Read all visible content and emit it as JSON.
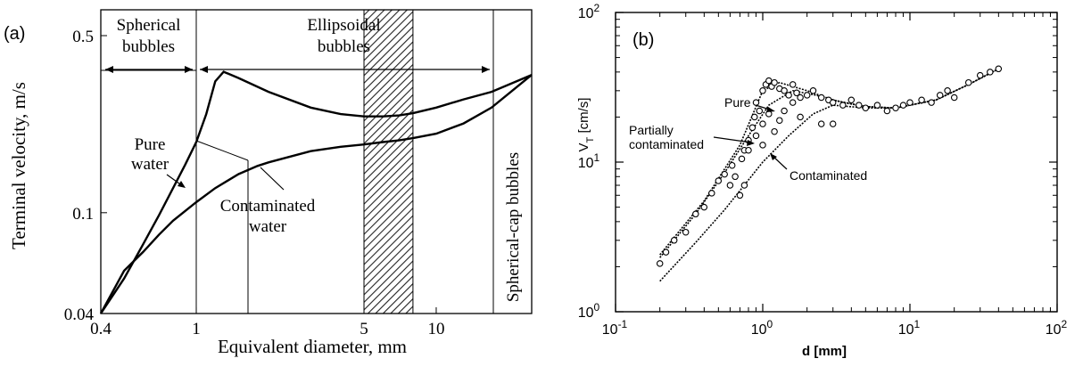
{
  "chart_data": [
    {
      "panel_label": "(a)",
      "type": "line",
      "xlabel": "Equivalent diameter, mm",
      "ylabel": "Terminal velocity, m/s",
      "xscale": "log",
      "yscale": "log",
      "xlim": [
        0.4,
        25
      ],
      "ylim": [
        0.04,
        0.6
      ],
      "x_ticks": [
        {
          "value": 0.4,
          "label": "0.4"
        },
        {
          "value": 1,
          "label": "1"
        },
        {
          "value": 5,
          "label": "5"
        },
        {
          "value": 10,
          "label": "10"
        }
      ],
      "y_ticks": [
        {
          "value": 0.04,
          "label": "0.04"
        },
        {
          "value": 0.1,
          "label": "0.1"
        },
        {
          "value": 0.5,
          "label": "0.5"
        }
      ],
      "regions": [
        {
          "label": "Spherical bubbles",
          "x_range": [
            0.4,
            1
          ]
        },
        {
          "label": "Ellipsoidal bubbles",
          "x_range": [
            1,
            17
          ]
        },
        {
          "label": "Spherical-cap bubbles",
          "x_range": [
            17,
            25
          ]
        }
      ],
      "hatched_band": [
        5,
        8
      ],
      "series": [
        {
          "x": [
            0.4,
            0.5,
            0.6,
            0.7,
            0.8,
            0.9,
            1.0,
            1.1,
            1.2,
            1.3,
            1.5,
            2,
            3,
            4,
            5,
            6,
            7,
            8,
            10,
            13,
            17,
            25
          ],
          "y": [
            0.04,
            0.055,
            0.075,
            0.098,
            0.125,
            0.155,
            0.19,
            0.245,
            0.33,
            0.36,
            0.34,
            0.3,
            0.26,
            0.245,
            0.24,
            0.24,
            0.242,
            0.247,
            0.26,
            0.28,
            0.3,
            0.35
          ]
        },
        {
          "x": [
            0.4,
            0.5,
            0.6,
            0.7,
            0.8,
            1.0,
            1.2,
            1.5,
            1.8,
            2,
            3,
            4,
            5,
            6,
            7,
            8,
            10,
            13,
            17,
            25
          ],
          "y": [
            0.04,
            0.059,
            0.07,
            0.082,
            0.093,
            0.11,
            0.125,
            0.142,
            0.153,
            0.158,
            0.175,
            0.182,
            0.186,
            0.19,
            0.193,
            0.197,
            0.205,
            0.225,
            0.26,
            0.35
          ]
        }
      ],
      "annotations": [
        "Pure water",
        "Contaminated water"
      ]
    },
    {
      "panel_label": "(b)",
      "type": "scatter",
      "xlabel": "d [mm]",
      "ylabel": "VT [cm/s]",
      "xscale": "log",
      "yscale": "log",
      "xlim": [
        0.1,
        100
      ],
      "ylim": [
        1,
        100
      ],
      "x_ticks": [
        {
          "value": 0.1,
          "base": "10",
          "exp": "-1"
        },
        {
          "value": 1,
          "base": "10",
          "exp": "0"
        },
        {
          "value": 10,
          "base": "10",
          "exp": "1"
        },
        {
          "value": 100,
          "base": "10",
          "exp": "2"
        }
      ],
      "y_ticks": [
        {
          "value": 1,
          "base": "10",
          "exp": "0"
        },
        {
          "value": 10,
          "base": "10",
          "exp": "1"
        },
        {
          "value": 100,
          "base": "10",
          "exp": "2"
        }
      ],
      "lines": [
        {
          "x": [
            0.2,
            0.4,
            0.7,
            1.0,
            1.3,
            2,
            3,
            5,
            8,
            15,
            25,
            40
          ],
          "y": [
            2.4,
            5.5,
            13,
            30,
            34,
            30,
            26,
            23.5,
            23,
            26,
            33,
            42
          ]
        },
        {
          "x": [
            0.2,
            0.35,
            0.55,
            0.8,
            1.1,
            1.6,
            2.3,
            3.5,
            5,
            8,
            15,
            25,
            40
          ],
          "y": [
            2.3,
            4.5,
            8.5,
            15,
            24,
            30,
            28,
            25,
            23.5,
            23,
            26,
            33,
            42
          ]
        },
        {
          "x": [
            0.2,
            0.35,
            0.55,
            1.0,
            1.5,
            2.2,
            3,
            5,
            8,
            15,
            25,
            40
          ],
          "y": [
            1.6,
            2.9,
            4.8,
            10,
            15,
            21,
            24,
            23,
            23,
            26,
            33,
            42
          ]
        }
      ],
      "points": [
        [
          0.2,
          2.1
        ],
        [
          0.22,
          2.5
        ],
        [
          0.25,
          3.0
        ],
        [
          0.3,
          3.4
        ],
        [
          0.35,
          4.5
        ],
        [
          0.4,
          5.0
        ],
        [
          0.45,
          6.2
        ],
        [
          0.5,
          7.5
        ],
        [
          0.55,
          8.3
        ],
        [
          0.6,
          7.0
        ],
        [
          0.62,
          9.5
        ],
        [
          0.7,
          6.0
        ],
        [
          0.72,
          10.5
        ],
        [
          0.75,
          12
        ],
        [
          0.8,
          14
        ],
        [
          0.85,
          17
        ],
        [
          0.88,
          20
        ],
        [
          0.9,
          25
        ],
        [
          0.95,
          22
        ],
        [
          1.0,
          30
        ],
        [
          1.05,
          33
        ],
        [
          1.1,
          35
        ],
        [
          1.15,
          32
        ],
        [
          1.2,
          34
        ],
        [
          1.3,
          31
        ],
        [
          1.4,
          30
        ],
        [
          1.5,
          28
        ],
        [
          1.6,
          33
        ],
        [
          1.7,
          29
        ],
        [
          1.8,
          27
        ],
        [
          2.0,
          28
        ],
        [
          2.2,
          30
        ],
        [
          2.5,
          27
        ],
        [
          2.8,
          26
        ],
        [
          3.0,
          25
        ],
        [
          3.5,
          24
        ],
        [
          4.0,
          26
        ],
        [
          4.5,
          24
        ],
        [
          5.0,
          23
        ],
        [
          6.0,
          24
        ],
        [
          7.0,
          22
        ],
        [
          8.0,
          23
        ],
        [
          9.0,
          24
        ],
        [
          10.0,
          25
        ],
        [
          12.0,
          26
        ],
        [
          14.0,
          25
        ],
        [
          16.0,
          28
        ],
        [
          18.0,
          30
        ],
        [
          20.0,
          27
        ],
        [
          25.0,
          34
        ],
        [
          30.0,
          38
        ],
        [
          35.0,
          40
        ],
        [
          40.0,
          42
        ],
        [
          0.8,
          12
        ],
        [
          0.9,
          15
        ],
        [
          1.0,
          18
        ],
        [
          1.1,
          21
        ],
        [
          1.2,
          16
        ],
        [
          1.4,
          22
        ],
        [
          1.6,
          25
        ],
        [
          1.8,
          20
        ],
        [
          2.5,
          18
        ],
        [
          3.0,
          18
        ],
        [
          0.65,
          8
        ],
        [
          0.75,
          7
        ],
        [
          1.0,
          13
        ],
        [
          1.3,
          19
        ]
      ],
      "annotations": [
        "Pure",
        "Partially contaminated",
        "Contaminated"
      ]
    }
  ]
}
